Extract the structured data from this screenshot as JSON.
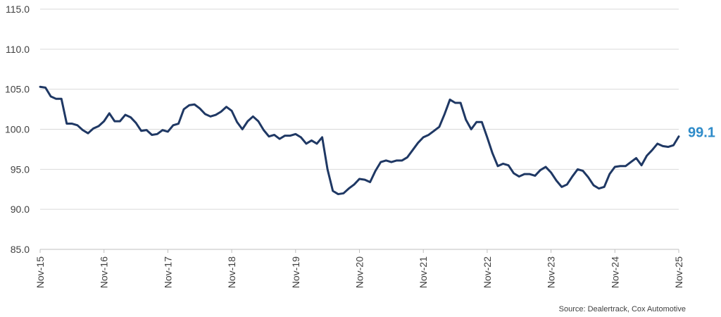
{
  "chart_data": {
    "type": "line",
    "title": "",
    "xlabel": "",
    "ylabel": "",
    "ylim": [
      85,
      115
    ],
    "y_ticks": [
      "115.0",
      "110.0",
      "105.0",
      "100.0",
      "95.0",
      "90.0",
      "85.0"
    ],
    "x_ticks": [
      "Nov-15",
      "Nov-16",
      "Nov-17",
      "Nov-18",
      "Nov-19",
      "Nov-20",
      "Nov-21",
      "Nov-22",
      "Nov-23",
      "Nov-24",
      "Nov-25"
    ],
    "grid": true,
    "legend": "none",
    "end_label": "99.1",
    "colors": {
      "line": "#1f3864",
      "end_label": "#2e8bc9",
      "grid": "#d9d9d9"
    },
    "series": [
      {
        "values": [
          105.3,
          105.2,
          104.1,
          103.8,
          103.8,
          100.7,
          100.7,
          100.5,
          99.9,
          99.5,
          100.1,
          100.4,
          101.0,
          102.0,
          101.0,
          101.0,
          101.8,
          101.5,
          100.8,
          99.8,
          99.9,
          99.3,
          99.4,
          99.9,
          99.7,
          100.5,
          100.7,
          102.5,
          103.0,
          103.1,
          102.6,
          101.9,
          101.6,
          101.8,
          102.2,
          102.8,
          102.3,
          100.9,
          100.0,
          101.0,
          101.6,
          101.0,
          99.9,
          99.1,
          99.3,
          98.8,
          99.2,
          99.2,
          99.4,
          99.0,
          98.2,
          98.6,
          98.2,
          99.0,
          95.0,
          92.3,
          91.9,
          92.0,
          92.6,
          93.1,
          93.8,
          93.7,
          93.4,
          94.8,
          95.9,
          96.1,
          95.9,
          96.1,
          96.1,
          96.5,
          97.4,
          98.3,
          99.0,
          99.3,
          99.8,
          100.3,
          101.9,
          103.7,
          103.3,
          103.3,
          101.2,
          100.0,
          100.9,
          100.9,
          99.0,
          97.0,
          95.4,
          95.7,
          95.5,
          94.5,
          94.1,
          94.4,
          94.4,
          94.2,
          94.9,
          95.3,
          94.6,
          93.6,
          92.8,
          93.1,
          94.1,
          95.0,
          94.8,
          94.0,
          93.0,
          92.6,
          92.8,
          94.4,
          95.3,
          95.4,
          95.4,
          95.9,
          96.4,
          95.5,
          96.7,
          97.4,
          98.2,
          97.9,
          97.8,
          98.0,
          99.1
        ]
      }
    ]
  },
  "source": "Source: Dealertrack, Cox Automotive"
}
